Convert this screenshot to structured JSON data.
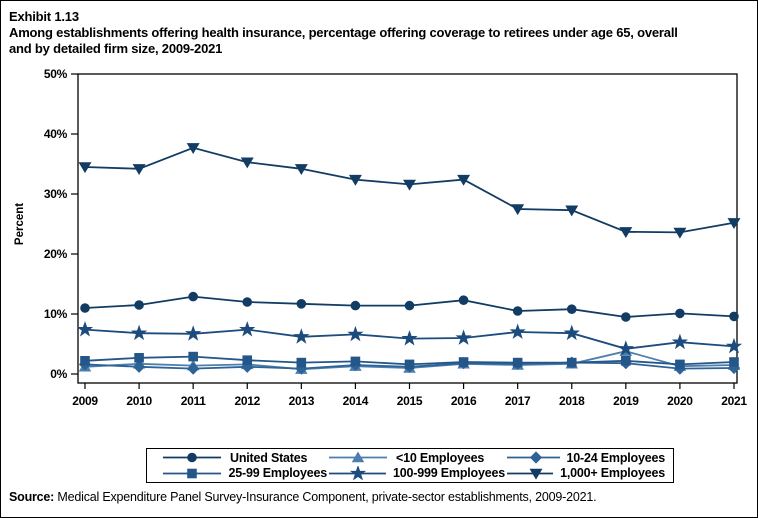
{
  "page": {
    "exhibit_label": "Exhibit 1.13",
    "title_line1": "Among establishments offering health insurance, percentage offering coverage to retirees under age 65, overall",
    "title_line2": "and by detailed firm size, 2009-2021",
    "source_label": "Source:",
    "source_text": " Medical Expenditure Panel Survey-Insurance Component, private-sector establishments, 2009-2021."
  },
  "chart_data": {
    "type": "line",
    "title": "Among establishments offering health insurance, percentage offering coverage to retirees under age 65, overall and by detailed firm size, 2009-2021",
    "xlabel": "",
    "ylabel": "Percent",
    "ylim": [
      0,
      50
    ],
    "ytick_labels": [
      "0%",
      "10%",
      "20%",
      "30%",
      "40%",
      "50%"
    ],
    "grid": false,
    "legend_position": "bottom",
    "x": [
      2009,
      2010,
      2011,
      2012,
      2013,
      2014,
      2015,
      2016,
      2017,
      2018,
      2019,
      2020,
      2021
    ],
    "series": [
      {
        "name": "United States",
        "marker": "circle",
        "color": "#123C63",
        "values": [
          11.0,
          11.5,
          12.9,
          12.0,
          11.7,
          11.4,
          11.4,
          12.3,
          10.5,
          10.8,
          9.5,
          10.1,
          9.6
        ]
      },
      {
        "name": "<10 Employees",
        "marker": "triangle-up",
        "color": "#4C7FAE",
        "values": [
          1.2,
          1.7,
          1.4,
          1.6,
          0.8,
          1.3,
          1.0,
          1.7,
          1.5,
          1.7,
          3.8,
          1.3,
          1.5
        ]
      },
      {
        "name": "10-24 Employees",
        "marker": "diamond",
        "color": "#2E6397",
        "values": [
          1.6,
          1.2,
          0.9,
          1.2,
          0.9,
          1.5,
          1.2,
          1.8,
          1.7,
          1.9,
          1.8,
          0.9,
          1.0
        ]
      },
      {
        "name": "25-99 Employees",
        "marker": "square",
        "color": "#24568A",
        "values": [
          2.2,
          2.7,
          2.9,
          2.3,
          1.9,
          2.1,
          1.6,
          2.0,
          1.9,
          1.9,
          2.2,
          1.6,
          2.0
        ]
      },
      {
        "name": "100-999 Employees",
        "marker": "star",
        "color": "#1C4B7D",
        "values": [
          7.4,
          6.8,
          6.7,
          7.4,
          6.2,
          6.6,
          5.9,
          6.0,
          7.0,
          6.8,
          4.2,
          5.3,
          4.6
        ]
      },
      {
        "name": "1,000+ Employees",
        "marker": "triangle-down",
        "color": "#123C63",
        "values": [
          34.5,
          34.2,
          37.7,
          35.3,
          34.2,
          32.4,
          31.6,
          32.4,
          27.5,
          27.3,
          23.7,
          23.6,
          25.2
        ]
      }
    ],
    "legend_order": [
      [
        "United States",
        "<10 Employees",
        "10-24 Employees"
      ],
      [
        "25-99 Employees",
        "100-999 Employees",
        "1,000+ Employees"
      ]
    ]
  }
}
